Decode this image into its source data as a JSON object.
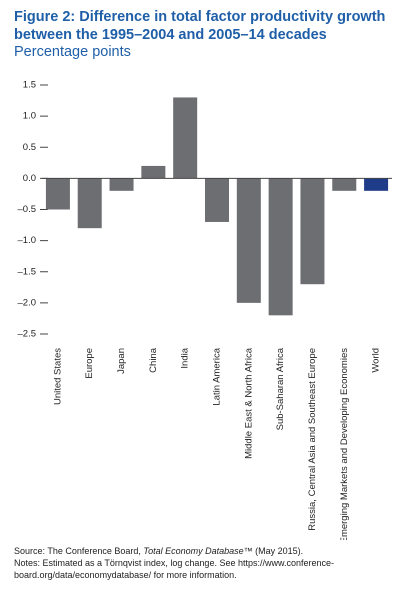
{
  "chart_data": {
    "type": "bar",
    "title": "Figure 2: Difference in total factor productivity growth between the 1995–2004 and 2005–14 decades",
    "subtitle": "Percentage points",
    "categories": [
      "United States",
      "Europe",
      "Japan",
      "China",
      "India",
      "Latin America",
      "Middle East & North Africa",
      "Sub-Saharan Africa",
      "Russia, Central Asia and Southeast Europe",
      "Emerging Markets and Developing Economies",
      "World"
    ],
    "values": [
      -0.5,
      -0.8,
      -0.2,
      0.2,
      1.3,
      -0.7,
      -2.0,
      -2.2,
      -1.7,
      -0.2,
      -0.2
    ],
    "colors": [
      "#6d6e71",
      "#6d6e71",
      "#6d6e71",
      "#6d6e71",
      "#6d6e71",
      "#6d6e71",
      "#6d6e71",
      "#6d6e71",
      "#6d6e71",
      "#6d6e71",
      "#1f3c88"
    ],
    "ylim": [
      -2.5,
      1.5
    ],
    "yticks": [
      1.5,
      {
        "value": 1,
        "label": "1.0"
      },
      0.5,
      {
        "value": 0,
        "label": "0.0"
      },
      {
        "value": -0.5,
        "label": "–0.5"
      },
      {
        "value": -1,
        "label": "–1.0"
      },
      {
        "value": -1.5,
        "label": "–1.5"
      },
      {
        "value": -2,
        "label": "–2.0"
      },
      {
        "value": -2.5,
        "label": "–2.5"
      }
    ],
    "source": {
      "prefix": "Source: The Conference Board, ",
      "italic": "Total Economy Database",
      "suffix": "™ (May 2015)."
    },
    "notes": "Notes: Estimated as a Törnqvist index, log change. See https://www.conference-board.org/data/economydatabase/ for more information."
  }
}
